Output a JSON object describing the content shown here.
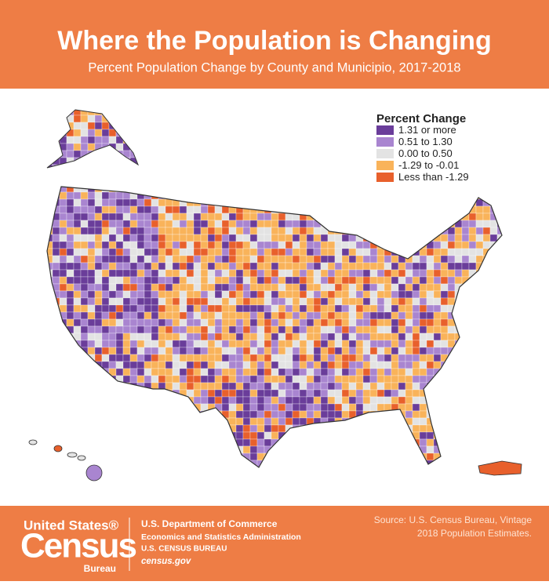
{
  "header": {
    "title": "Where the Population is Changing",
    "subtitle": "Percent Population Change by County and Municipio, 2017-2018"
  },
  "legend": {
    "title": "Percent Change",
    "items": [
      {
        "label": "1.31 or more",
        "color": "#6a3d9a"
      },
      {
        "label": "0.51 to 1.30",
        "color": "#a985d0"
      },
      {
        "label": "0.00 to 0.50",
        "color": "#e3e3e3"
      },
      {
        "label": "-1.29 to -0.01",
        "color": "#f9b35a"
      },
      {
        "label": "Less than -1.29",
        "color": "#e8602c"
      }
    ]
  },
  "footer": {
    "logo": {
      "line1": "United States®",
      "line2": "Census",
      "line3": "Bureau"
    },
    "department": [
      "U.S. Department of Commerce",
      "Economics and Statistics Administration",
      "U.S. CENSUS BUREAU",
      "census.gov"
    ],
    "source": [
      "Source: U.S. Census Bureau, Vintage",
      "2018 Population Estimates."
    ]
  }
}
